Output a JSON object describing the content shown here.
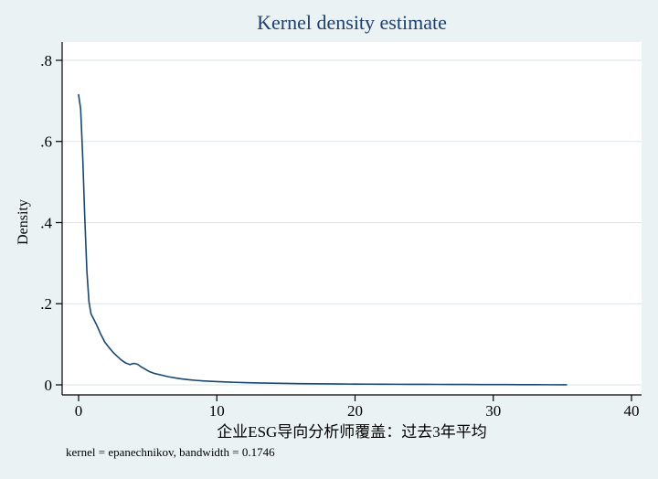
{
  "chart_data": {
    "type": "line",
    "title": "Kernel density estimate",
    "xlabel": "企业ESG导向分析师覆盖：过去3年平均",
    "ylabel": "Density",
    "note": "kernel = epanechnikov, bandwidth = 0.1746",
    "xlim": [
      -1.2,
      40.8
    ],
    "ylim": [
      -0.025,
      0.85
    ],
    "grid": "horizontal",
    "legend": "none",
    "x_ticks": {
      "values": [
        0,
        10,
        20,
        30,
        40
      ],
      "labels": [
        "0",
        "10",
        "20",
        "30",
        "40"
      ]
    },
    "y_ticks": {
      "values": [
        0,
        0.2,
        0.4,
        0.6,
        0.8
      ],
      "labels": [
        "0",
        ".2",
        ".4",
        ".6",
        ".8"
      ]
    },
    "colors": {
      "page_background": "#eaf2f3",
      "plot_background": "#ffffff",
      "grid": "#d9e6ea",
      "axis": "#000000",
      "title": "#1c3f6e",
      "line": "#1a476f"
    },
    "series": [
      {
        "name": "kdensity",
        "color": "#1a476f",
        "points": [
          [
            0,
            0.715
          ],
          [
            0.15,
            0.68
          ],
          [
            0.3,
            0.56
          ],
          [
            0.45,
            0.41
          ],
          [
            0.6,
            0.28
          ],
          [
            0.75,
            0.205
          ],
          [
            0.9,
            0.175
          ],
          [
            1.05,
            0.165
          ],
          [
            1.3,
            0.148
          ],
          [
            1.6,
            0.125
          ],
          [
            1.9,
            0.105
          ],
          [
            2.2,
            0.092
          ],
          [
            2.5,
            0.08
          ],
          [
            2.8,
            0.07
          ],
          [
            3.1,
            0.061
          ],
          [
            3.4,
            0.054
          ],
          [
            3.7,
            0.05
          ],
          [
            4.0,
            0.053
          ],
          [
            4.25,
            0.051
          ],
          [
            4.5,
            0.045
          ],
          [
            4.8,
            0.039
          ],
          [
            5.1,
            0.033
          ],
          [
            5.5,
            0.028
          ],
          [
            6.0,
            0.024
          ],
          [
            6.5,
            0.02
          ],
          [
            7.0,
            0.017
          ],
          [
            7.5,
            0.0145
          ],
          [
            8.0,
            0.0125
          ],
          [
            8.5,
            0.011
          ],
          [
            9.0,
            0.0098
          ],
          [
            9.5,
            0.0088
          ],
          [
            10.0,
            0.008
          ],
          [
            11.0,
            0.0066
          ],
          [
            12.0,
            0.0055
          ],
          [
            13.0,
            0.0047
          ],
          [
            14.0,
            0.004
          ],
          [
            15.0,
            0.0035
          ],
          [
            16.0,
            0.003
          ],
          [
            17.0,
            0.0027
          ],
          [
            18.0,
            0.0024
          ],
          [
            19.0,
            0.0021
          ],
          [
            20.0,
            0.0019
          ],
          [
            21.0,
            0.0017
          ],
          [
            22.0,
            0.0016
          ],
          [
            23.0,
            0.0014
          ],
          [
            24.0,
            0.0013
          ],
          [
            25.0,
            0.0012
          ],
          [
            26.0,
            0.0011
          ],
          [
            27.0,
            0.001
          ],
          [
            28.0,
            0.0009
          ],
          [
            29.0,
            0.0008
          ],
          [
            30.0,
            0.0007
          ],
          [
            31.0,
            0.0006
          ],
          [
            32.0,
            0.0005
          ],
          [
            33.0,
            0.0004
          ],
          [
            34.0,
            0.0003
          ],
          [
            35.3,
            0.0002
          ]
        ]
      }
    ]
  }
}
